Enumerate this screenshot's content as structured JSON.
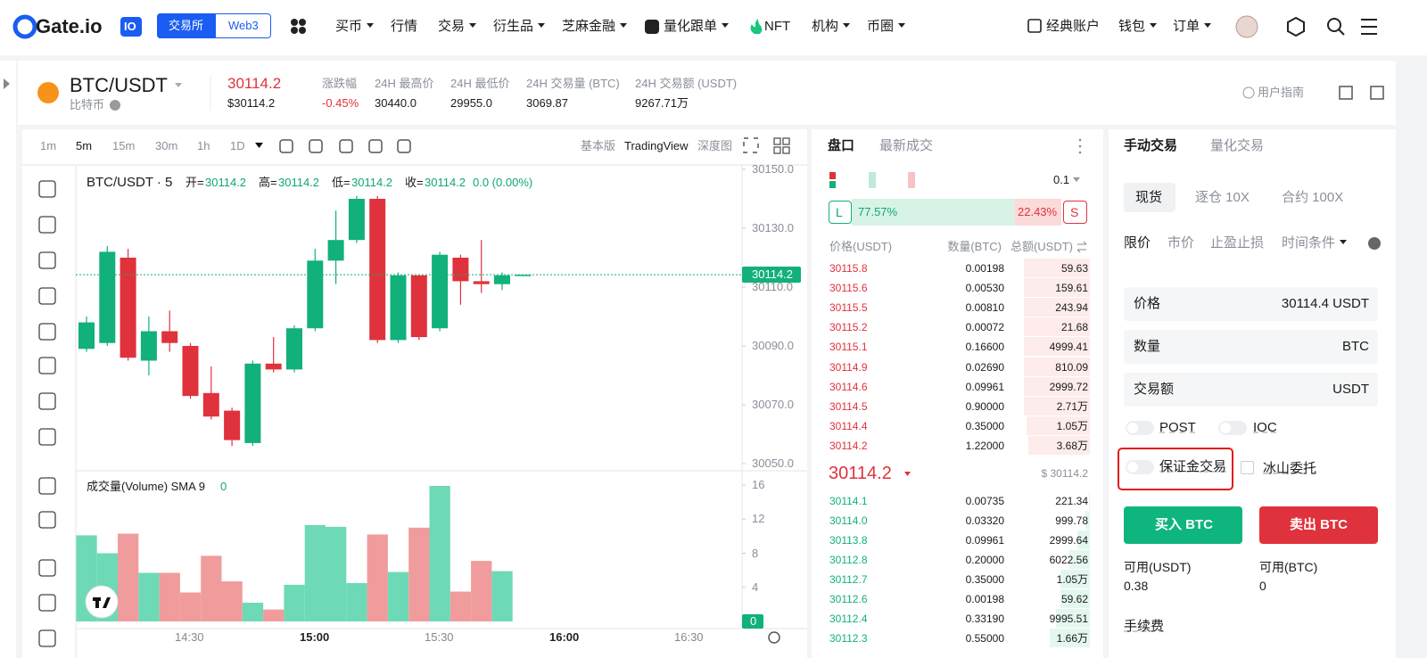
{
  "nav": {
    "logo": "Gate.io",
    "badge": "IO",
    "toggle": [
      "交易所",
      "Web3"
    ],
    "menu": [
      "买币",
      "行情",
      "交易",
      "衍生品",
      "芝麻金融",
      "量化跟单",
      "NFT",
      "机构",
      "币圈"
    ],
    "right": [
      "经典账户",
      "钱包",
      "订单"
    ]
  },
  "ticker": {
    "pair": "BTC/USDT",
    "coin": "比特币",
    "price": 30114.2,
    "price_usd": "$30114.2",
    "stats": [
      {
        "label": "涨跌幅",
        "value": "-0.45%"
      },
      {
        "label": "24H 最高价",
        "value": "30440.0"
      },
      {
        "label": "24H 最低价",
        "value": "29955.0"
      },
      {
        "label": "24H 交易量 (BTC)",
        "value": "3069.87"
      },
      {
        "label": "24H 交易额 (USDT)",
        "value": "9267.71万"
      }
    ],
    "guide": "用户指南"
  },
  "chart": {
    "intervals": [
      "1m",
      "5m",
      "15m",
      "30m",
      "1h",
      "1D"
    ],
    "views": [
      "基本版",
      "TradingView",
      "深度图"
    ],
    "title": "BTC/USDT · 5",
    "legend": [
      {
        "label": "开=",
        "value": 30114.2
      },
      {
        "label": "高=",
        "value": 30114.2
      },
      {
        "label": "低=",
        "value": 30114.2
      },
      {
        "label": "收=",
        "value": 30114.2
      }
    ],
    "change": "0.0 (0.00%)",
    "candles": [
      {
        "o": 30089,
        "h": 30100,
        "l": 30088,
        "c": 30098
      },
      {
        "o": 30091,
        "h": 30124,
        "l": 30090,
        "c": 30122
      },
      {
        "o": 30120,
        "h": 30123,
        "l": 30085,
        "c": 30086
      },
      {
        "o": 30085,
        "h": 30100,
        "l": 30080,
        "c": 30095
      },
      {
        "o": 30095,
        "h": 30102,
        "l": 30088,
        "c": 30091
      },
      {
        "o": 30090,
        "h": 30091,
        "l": 30072,
        "c": 30073
      },
      {
        "o": 30074,
        "h": 30083,
        "l": 30065,
        "c": 30066
      },
      {
        "o": 30068,
        "h": 30069,
        "l": 30056,
        "c": 30058
      },
      {
        "o": 30057,
        "h": 30085,
        "l": 30056,
        "c": 30084
      },
      {
        "o": 30084,
        "h": 30093,
        "l": 30081,
        "c": 30082
      },
      {
        "o": 30082,
        "h": 30097,
        "l": 30081,
        "c": 30096
      },
      {
        "o": 30096,
        "h": 30123,
        "l": 30095,
        "c": 30119
      },
      {
        "o": 30119,
        "h": 30136,
        "l": 30111,
        "c": 30126
      },
      {
        "o": 30126,
        "h": 30141,
        "l": 30125,
        "c": 30140
      },
      {
        "o": 30140,
        "h": 30141,
        "l": 30091,
        "c": 30092
      },
      {
        "o": 30092,
        "h": 30115,
        "l": 30091,
        "c": 30114
      },
      {
        "o": 30114,
        "h": 30114,
        "l": 30092,
        "c": 30093
      },
      {
        "o": 30096,
        "h": 30122,
        "l": 30095,
        "c": 30121
      },
      {
        "o": 30120,
        "h": 30121,
        "l": 30104,
        "c": 30112
      },
      {
        "o": 30112,
        "h": 30126,
        "l": 30108,
        "c": 30111
      },
      {
        "o": 30111,
        "h": 30115,
        "l": 30109,
        "c": 30114
      },
      {
        "o": 30114.2,
        "h": 30114.2,
        "l": 30114.2,
        "c": 30114.2
      }
    ],
    "volumes": [
      10.1,
      8.0,
      10.3,
      5.7,
      5.7,
      3.4,
      7.7,
      4.7,
      2.2,
      1.4,
      4.3,
      11.3,
      11.1,
      4.5,
      10.2,
      5.8,
      11.0,
      15.9,
      3.5,
      7.1,
      5.9,
      0
    ],
    "ylim": [
      30050,
      30150
    ],
    "yticks": [
      {
        "value": 30150,
        "label": "30150.0"
      },
      {
        "value": 30130,
        "label": "30130.0"
      },
      {
        "value": 30110,
        "label": "30110.0"
      },
      {
        "value": 30090,
        "label": "30090.0"
      },
      {
        "value": 30070,
        "label": "30070.0"
      },
      {
        "value": 30050,
        "label": "30050.0"
      }
    ],
    "vol_title": "成交量(Volume) SMA 9",
    "vol_sma": 0,
    "vlim": [
      0,
      16
    ],
    "vticks": [
      16,
      12,
      8,
      4,
      0
    ],
    "times": [
      "14:30",
      "15:00",
      "15:30",
      "16:00",
      "16:30"
    ]
  },
  "orderbook": {
    "tabs": [
      "盘口",
      "最新成交"
    ],
    "step": "0.1",
    "long": "L",
    "short": "S",
    "long_pct": 77.57,
    "short_pct": 22.43,
    "long_label": "77.57%",
    "short_label": "22.43%",
    "headers": [
      "价格(USDT)",
      "数量(BTC)",
      "总额(USDT)"
    ],
    "asks": [
      [
        "30115.8",
        "0.00198",
        "59.63"
      ],
      [
        "30115.6",
        "0.00530",
        "159.61"
      ],
      [
        "30115.5",
        "0.00810",
        "243.94"
      ],
      [
        "30115.2",
        "0.00072",
        "21.68"
      ],
      [
        "30115.1",
        "0.16600",
        "4999.41"
      ],
      [
        "30114.9",
        "0.02690",
        "810.09"
      ],
      [
        "30114.6",
        "0.09961",
        "2999.72"
      ],
      [
        "30114.5",
        "0.90000",
        "2.71万"
      ],
      [
        "30114.4",
        "0.35000",
        "1.05万"
      ],
      [
        "30114.2",
        "1.22000",
        "3.68万"
      ]
    ],
    "mid_usd": "$ 30114.2",
    "bids": [
      [
        "30114.1",
        "0.00735",
        "221.34"
      ],
      [
        "30114.0",
        "0.03320",
        "999.78"
      ],
      [
        "30113.8",
        "0.09961",
        "2999.64"
      ],
      [
        "30112.8",
        "0.20000",
        "6022.56"
      ],
      [
        "30112.7",
        "0.35000",
        "1.05万"
      ],
      [
        "30112.6",
        "0.00198",
        "59.62"
      ],
      [
        "30112.4",
        "0.33190",
        "9995.51"
      ],
      [
        "30112.3",
        "0.55000",
        "1.66万"
      ]
    ]
  },
  "trade": {
    "tabs": [
      "手动交易",
      "量化交易"
    ],
    "modes": [
      "现货",
      "逐仓 10X",
      "合约 100X"
    ],
    "orders": [
      "限价",
      "市价",
      "止盈止损",
      "时间条件"
    ],
    "fields": [
      {
        "label": "价格",
        "value": "30114.4 USDT"
      },
      {
        "label": "数量",
        "value": "BTC"
      },
      {
        "label": "交易额",
        "value": "USDT"
      }
    ],
    "options": [
      "POST",
      "IOC",
      "保证金交易",
      "冰山委托"
    ],
    "buy": "买入 BTC",
    "sell": "卖出 BTC",
    "avail": [
      {
        "label": "可用(USDT)",
        "value": "0.38"
      },
      {
        "label": "可用(BTC)",
        "value": "0"
      }
    ],
    "fee": "手续费"
  }
}
